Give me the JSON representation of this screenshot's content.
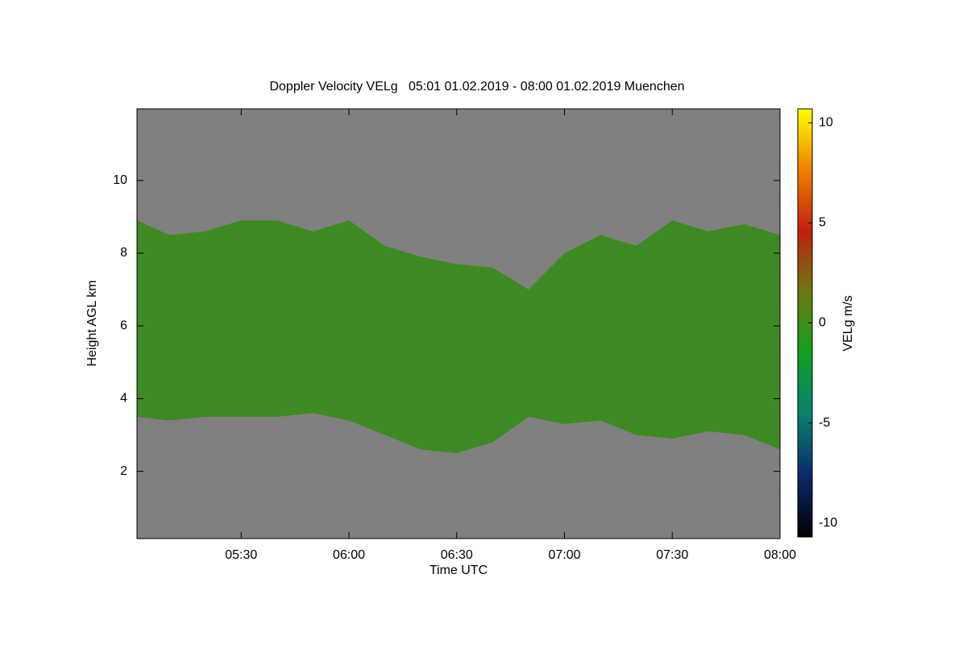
{
  "chart_data": {
    "type": "time-height",
    "title": "Doppler Velocity VELg   05:01 01.02.2019 - 08:00 01.02.2019 Muenchen",
    "xlabel": "Time UTC",
    "ylabel": "Height AGL km",
    "colorbar_label": "VELg m/s",
    "x": [
      301,
      310,
      320,
      330,
      340,
      350,
      360,
      370,
      380,
      390,
      400,
      410,
      420,
      430,
      440,
      450,
      460,
      470,
      480
    ],
    "cloud_top": [
      8.9,
      8.5,
      8.6,
      8.9,
      8.9,
      8.6,
      8.9,
      8.2,
      7.9,
      7.7,
      7.6,
      7.0,
      8.0,
      8.5,
      8.2,
      8.9,
      8.6,
      8.8,
      8.5
    ],
    "cloud_base": [
      3.5,
      3.4,
      3.5,
      3.5,
      3.5,
      3.6,
      3.4,
      3.0,
      2.6,
      2.5,
      2.8,
      3.5,
      3.3,
      3.4,
      3.0,
      2.9,
      3.1,
      3.0,
      2.6
    ],
    "cloud_color": "#3d8a22",
    "background_color": "#808080",
    "xlim": [
      301,
      480
    ],
    "xticks": [
      {
        "value": 330,
        "label": "05:30"
      },
      {
        "value": 360,
        "label": "06:00"
      },
      {
        "value": 390,
        "label": "06:30"
      },
      {
        "value": 420,
        "label": "07:00"
      },
      {
        "value": 450,
        "label": "07:30"
      },
      {
        "value": 480,
        "label": "08:00"
      }
    ],
    "ylim": [
      0.15,
      11.97
    ],
    "yticks": [
      2,
      4,
      6,
      8,
      10
    ],
    "clim": [
      -10.7,
      10.7
    ],
    "cticks": [
      -10,
      -5,
      0,
      5,
      10
    ],
    "colormap": [
      "#000000",
      "#0a2a6a",
      "#0a8070",
      "#10a020",
      "#6a7a10",
      "#c02010",
      "#f08000",
      "#ffff00"
    ]
  }
}
